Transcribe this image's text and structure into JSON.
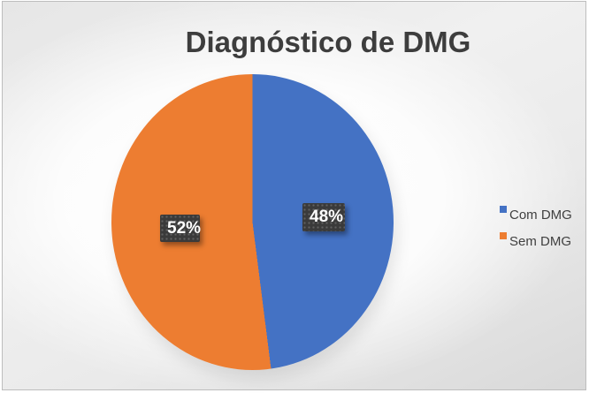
{
  "chart_data": {
    "type": "pie",
    "title": "Diagnóstico de DMG",
    "slices": [
      {
        "label": "Com DMG",
        "value_pct": 48,
        "color": "#4472C4",
        "data_label": "48%"
      },
      {
        "label": "Sem DMG",
        "value_pct": 52,
        "color": "#ED7D31",
        "data_label": "52%"
      }
    ],
    "start_angle_deg": 0,
    "direction": "clockwise",
    "legend_position": "right",
    "data_label_style": {
      "background": "#3a3a3a",
      "text_color": "#ffffff"
    }
  }
}
